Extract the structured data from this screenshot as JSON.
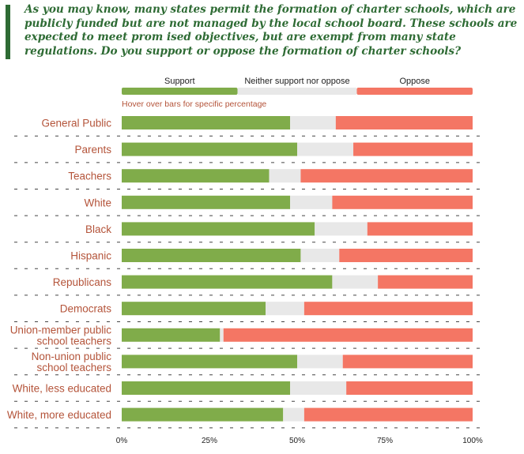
{
  "question": "As you may know, many states permit the formation of charter schools, which are publicly funded but are not managed by the local school board. These schools are expected to meet prom ised objectives, but are exempt from many state regulations. Do you support or oppose the formation of charter schools?",
  "hint": "Hover over bars for specific percentage",
  "colors": {
    "accent": "#2e6b34",
    "support": "#80ac4a",
    "neither": "#e8e8e8",
    "oppose": "#f47664",
    "category_text": "#b4543a"
  },
  "chart_data": {
    "type": "bar",
    "orientation": "horizontal",
    "stacked": true,
    "normalized": true,
    "categories": [
      "General Public",
      "Parents",
      "Teachers",
      "White",
      "Black",
      "Hispanic",
      "Republicans",
      "Democrats",
      "Union-member public school teachers",
      "Non-union public school teachers",
      "White, less educated",
      "White, more educated"
    ],
    "category_lines": [
      [
        "General Public"
      ],
      [
        "Parents"
      ],
      [
        "Teachers"
      ],
      [
        "White"
      ],
      [
        "Black"
      ],
      [
        "Hispanic"
      ],
      [
        "Republicans"
      ],
      [
        "Democrats"
      ],
      [
        "Union-member public",
        "school teachers"
      ],
      [
        "Non-union public",
        "school teachers"
      ],
      [
        "White, less educated"
      ],
      [
        "White, more educated"
      ]
    ],
    "series": [
      {
        "name": "Support",
        "values": [
          48,
          50,
          42,
          48,
          55,
          51,
          60,
          41,
          28,
          50,
          48,
          46
        ]
      },
      {
        "name": "Neither support nor oppose",
        "values": [
          13,
          16,
          9,
          12,
          15,
          11,
          13,
          11,
          1,
          13,
          16,
          6
        ]
      },
      {
        "name": "Oppose",
        "values": [
          39,
          34,
          49,
          40,
          30,
          38,
          27,
          48,
          71,
          37,
          36,
          48
        ]
      }
    ],
    "xlim": [
      0,
      100
    ],
    "xticks": [
      "0%",
      "25%",
      "50%",
      "75%",
      "100%"
    ],
    "legend_position": "top",
    "grid": false
  }
}
